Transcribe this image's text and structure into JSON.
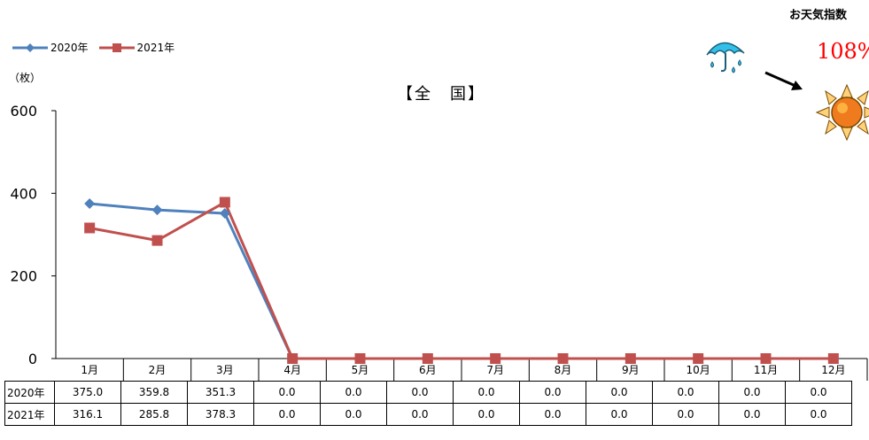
{
  "weather": {
    "label": "お天気指数",
    "value": "108%"
  },
  "chart_data": {
    "type": "line",
    "title": "【全　国】",
    "unit_label": "（枚）",
    "categories": [
      "1月",
      "2月",
      "3月",
      "4月",
      "5月",
      "6月",
      "7月",
      "8月",
      "9月",
      "10月",
      "11月",
      "12月"
    ],
    "ylim": [
      0,
      600
    ],
    "yticks": [
      0,
      200,
      400,
      600
    ],
    "legend_position": "top-left",
    "series": [
      {
        "name": "2020年",
        "color": "#4f81bd",
        "marker": "diamond",
        "values": [
          375.0,
          359.8,
          351.3,
          0.0,
          0.0,
          0.0,
          0.0,
          0.0,
          0.0,
          0.0,
          0.0,
          0.0
        ],
        "labels": [
          "375.0",
          "359.8",
          "351.3",
          "0.0",
          "0.0",
          "0.0",
          "0.0",
          "0.0",
          "0.0",
          "0.0",
          "0.0",
          "0.0"
        ]
      },
      {
        "name": "2021年",
        "color": "#c0504d",
        "marker": "square",
        "values": [
          316.1,
          285.8,
          378.3,
          0.0,
          0.0,
          0.0,
          0.0,
          0.0,
          0.0,
          0.0,
          0.0,
          0.0
        ],
        "labels": [
          "316.1",
          "285.8",
          "378.3",
          "0.0",
          "0.0",
          "0.0",
          "0.0",
          "0.0",
          "0.0",
          "0.0",
          "0.0",
          "0.0"
        ]
      }
    ]
  }
}
